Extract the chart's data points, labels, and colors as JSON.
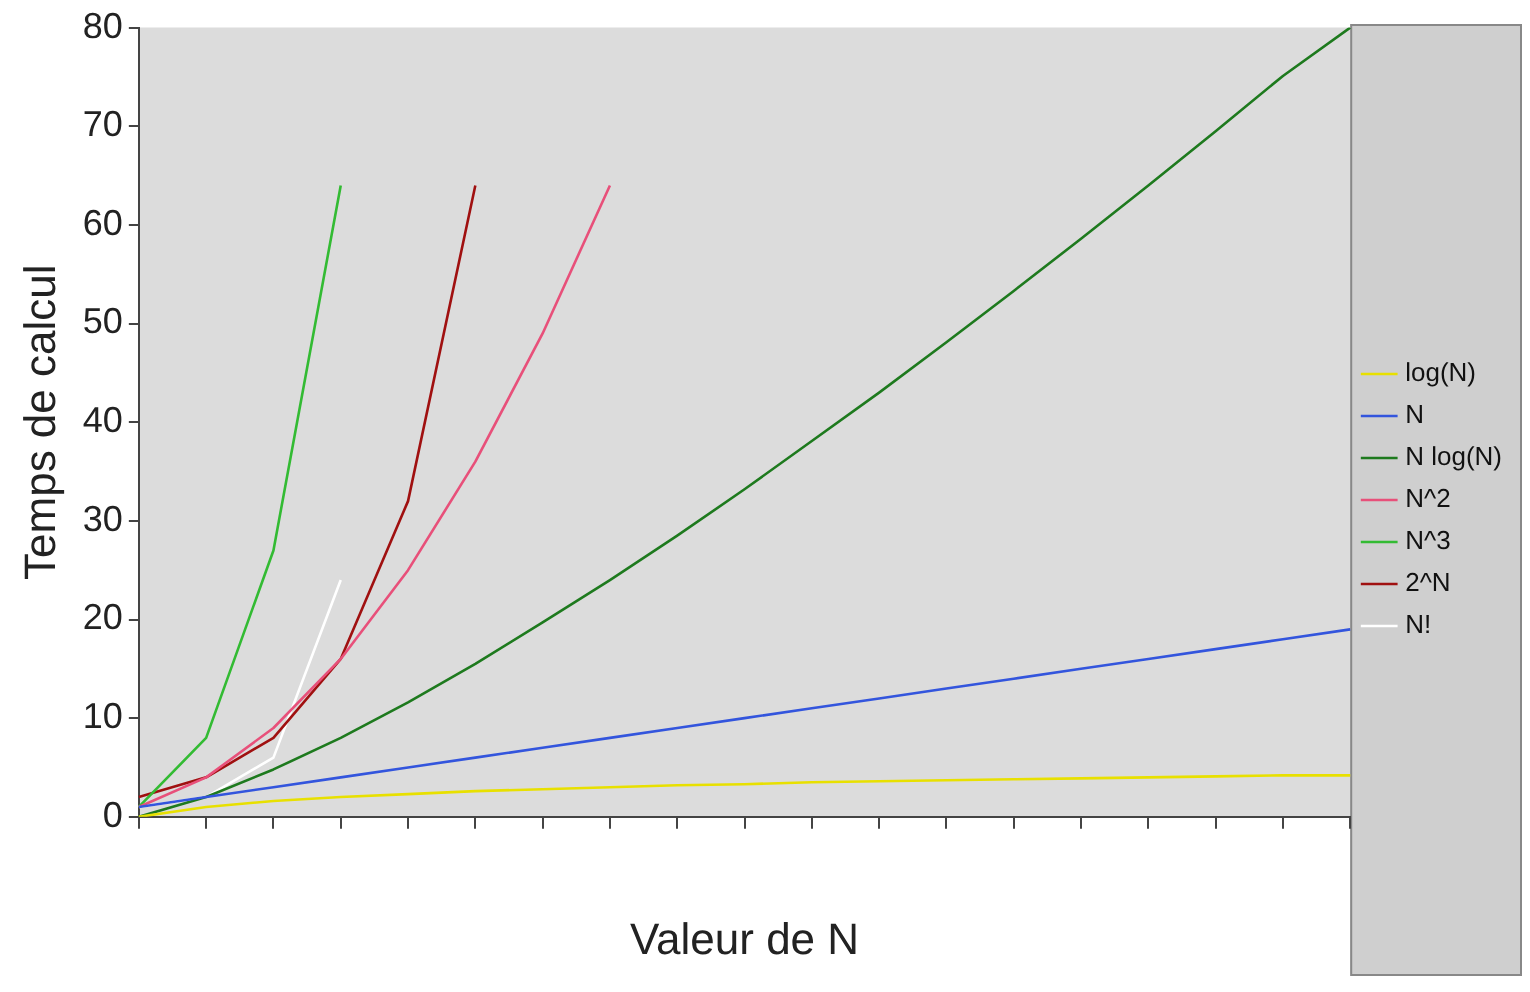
{
  "chart_data": {
    "type": "line",
    "xlabel": "Valeur de N",
    "ylabel": "Temps de calcul",
    "categories": [
      null,
      null,
      null,
      null,
      null,
      null,
      null,
      null,
      null,
      null,
      null,
      null,
      null,
      null,
      null,
      null,
      null,
      null,
      null
    ],
    "series": [
      {
        "name": "log(N)",
        "color": "#e8e000",
        "values": [
          0,
          1,
          1.6,
          2,
          2.3,
          2.6,
          2.8,
          3,
          3.2,
          3.3,
          3.5,
          3.6,
          3.7,
          3.8,
          3.9,
          4,
          4.1,
          4.2,
          4.2
        ]
      },
      {
        "name": "N",
        "color": "#3355dd",
        "values": [
          1,
          2,
          3,
          4,
          5,
          6,
          7,
          8,
          9,
          10,
          11,
          12,
          13,
          14,
          15,
          16,
          17,
          18,
          19
        ]
      },
      {
        "name": "N log(N)",
        "color": "#1e7a1e",
        "values": [
          0,
          2,
          4.8,
          8,
          11.6,
          15.5,
          19.7,
          24,
          28.5,
          33.2,
          38.1,
          43,
          48.1,
          53.3,
          58.6,
          64,
          69.5,
          75.1,
          80
        ]
      },
      {
        "name": "N^2",
        "color": "#e8507a",
        "values": [
          1,
          4,
          9,
          16,
          25,
          36,
          49,
          64,
          null,
          null,
          null,
          null,
          null,
          null,
          null,
          null,
          null,
          null,
          null
        ]
      },
      {
        "name": "N^3",
        "color": "#33bb33",
        "values": [
          1,
          8,
          27,
          64,
          null,
          null,
          null,
          null,
          null,
          null,
          null,
          null,
          null,
          null,
          null,
          null,
          null,
          null,
          null
        ]
      },
      {
        "name": "2^N",
        "color": "#a01010",
        "values": [
          2,
          4,
          8,
          16,
          32,
          64,
          null,
          null,
          null,
          null,
          null,
          null,
          null,
          null,
          null,
          null,
          null,
          null,
          null
        ]
      },
      {
        "name": "N!",
        "color": "#ffffff",
        "values": [
          1,
          2,
          6,
          24,
          null,
          null,
          null,
          null,
          null,
          null,
          null,
          null,
          null,
          null,
          null,
          null,
          null,
          null,
          null
        ]
      }
    ],
    "ylim": [
      0,
      80
    ],
    "yticks": [
      0,
      10,
      20,
      30,
      40,
      50,
      60,
      70,
      80
    ],
    "grid": false,
    "legend": "right",
    "tick_labels": "y",
    "marker": "none",
    "line_style": "solid"
  }
}
